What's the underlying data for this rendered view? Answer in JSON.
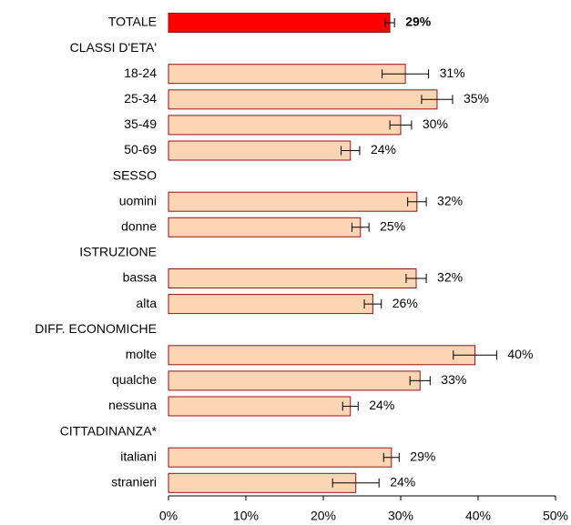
{
  "chart_data": {
    "type": "hbar",
    "categories": [
      "TOTALE",
      "CLASSI D'ETA'",
      "18-24",
      "25-34",
      "35-49",
      "50-69",
      "SESSO",
      "uomini",
      "donne",
      "ISTRUZIONE",
      "bassa",
      "alta",
      "DIFF. ECONOMICHE",
      "molte",
      "qualche",
      "nessuna",
      "CITTADINANZA*",
      "italiani",
      "stranieri"
    ],
    "values": [
      28.6,
      null,
      30.6,
      34.7,
      30.0,
      23.5,
      null,
      32.1,
      24.8,
      null,
      32.0,
      26.4,
      null,
      39.6,
      32.5,
      23.5,
      null,
      28.8,
      24.2
    ],
    "errors": [
      0.6,
      null,
      3.0,
      2.0,
      1.4,
      1.2,
      null,
      1.2,
      1.1,
      null,
      1.3,
      1.1,
      null,
      2.8,
      1.3,
      1.0,
      null,
      1.0,
      3.0
    ],
    "value_labels": [
      "29%",
      null,
      "31%",
      "35%",
      "30%",
      "24%",
      null,
      "32%",
      "25%",
      null,
      "32%",
      "26%",
      null,
      "40%",
      "33%",
      "24%",
      null,
      "29%",
      "24%"
    ],
    "colors": [
      "#ff0000",
      null,
      "#fcd5b4",
      "#fcd5b4",
      "#fcd5b4",
      "#fcd5b4",
      null,
      "#fcd5b4",
      "#fcd5b4",
      null,
      "#fcd5b4",
      "#fcd5b4",
      null,
      "#fcd5b4",
      "#fcd5b4",
      "#fcd5b4",
      null,
      "#fcd5b4",
      "#fcd5b4"
    ],
    "edge_color": "#9a1010",
    "xlim": [
      0,
      50
    ],
    "xticks": [
      {
        "value": 0,
        "label": "0%"
      },
      {
        "value": 10,
        "label": "10%"
      },
      {
        "value": 20,
        "label": "20%"
      },
      {
        "value": 30,
        "label": "30%"
      },
      {
        "value": 40,
        "label": "40%"
      },
      {
        "value": 50,
        "label": "50%"
      }
    ]
  }
}
